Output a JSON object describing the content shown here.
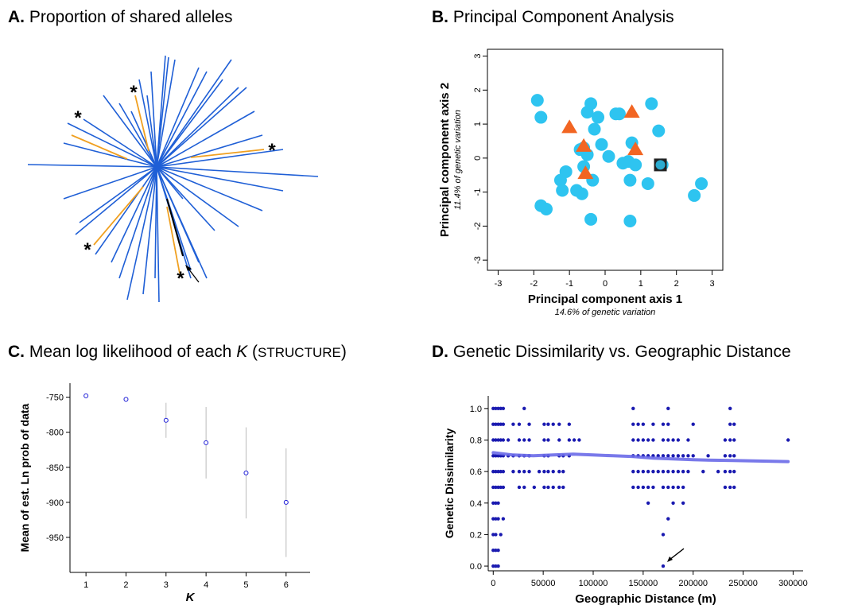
{
  "panels": {
    "a": {
      "letter": "A.",
      "title": "Proportion of shared alleles"
    },
    "b": {
      "letter": "B.",
      "title": "Principal Component Analysis"
    },
    "c": {
      "letter": "C.",
      "title_pre": "Mean log likelihood of each ",
      "title_k": "K",
      "title_paren_open": " (",
      "title_struct": "STRUCTURE",
      "title_paren_close": ")"
    },
    "d": {
      "letter": "D.",
      "title": "Genetic Dissimilarity vs. Geographic Distance"
    }
  },
  "tree": {
    "marker": "*",
    "colors": {
      "branch": "#1f5fd6",
      "highlight": "#f0a020",
      "target": "#000000"
    }
  },
  "chart_data": [
    {
      "id": "pca",
      "type": "scatter",
      "xlabel": "Principal component axis 1",
      "xlabel_sub": "14.6% of genetic variation",
      "ylabel": "Principal component axis 2",
      "ylabel_sub": "11.4% of genetic variation",
      "xlim": [
        -3.3,
        3.3
      ],
      "ylim": [
        -3.3,
        3.2
      ],
      "xticks": [
        -3,
        -2,
        -1,
        0,
        1,
        2,
        3
      ],
      "yticks": [
        -3,
        -2,
        -1,
        0,
        1,
        2,
        3
      ],
      "colors": {
        "circle": "#2ec4f0",
        "triangle": "#f26522",
        "square": "#222222"
      },
      "series": [
        {
          "marker": "circle",
          "points": [
            [
              -1.9,
              1.7
            ],
            [
              -1.8,
              1.2
            ],
            [
              -0.4,
              1.6
            ],
            [
              -0.5,
              1.35
            ],
            [
              -0.2,
              1.2
            ],
            [
              0.3,
              1.3
            ],
            [
              0.4,
              1.3
            ],
            [
              1.3,
              1.6
            ],
            [
              -0.3,
              0.85
            ],
            [
              -0.6,
              0.3
            ],
            [
              -0.7,
              0.25
            ],
            [
              -0.1,
              0.4
            ],
            [
              0.75,
              0.45
            ],
            [
              1.5,
              0.8
            ],
            [
              -0.5,
              0.1
            ],
            [
              0.1,
              0.05
            ],
            [
              0.5,
              -0.15
            ],
            [
              0.65,
              -0.1
            ],
            [
              0.85,
              -0.2
            ],
            [
              -1.1,
              -0.4
            ],
            [
              -0.6,
              -0.25
            ],
            [
              -1.25,
              -0.65
            ],
            [
              -0.35,
              -0.65
            ],
            [
              0.7,
              -0.65
            ],
            [
              1.2,
              -0.75
            ],
            [
              2.7,
              -0.75
            ],
            [
              -1.2,
              -0.95
            ],
            [
              -0.8,
              -0.95
            ],
            [
              -0.65,
              -1.05
            ],
            [
              2.5,
              -1.1
            ],
            [
              -1.8,
              -1.4
            ],
            [
              -1.65,
              -1.5
            ],
            [
              -0.4,
              -1.8
            ],
            [
              0.7,
              -1.85
            ],
            [
              1.6,
              -0.2
            ]
          ]
        },
        {
          "marker": "triangle",
          "points": [
            [
              -1.0,
              0.9
            ],
            [
              0.75,
              1.35
            ],
            [
              -0.6,
              0.35
            ],
            [
              0.85,
              0.25
            ],
            [
              -0.55,
              -0.45
            ]
          ]
        },
        {
          "marker": "square",
          "points": [
            [
              1.55,
              -0.2
            ]
          ]
        }
      ]
    },
    {
      "id": "structure",
      "type": "scatter",
      "xlabel": "K",
      "ylabel": "Mean of est. Ln prob of data",
      "x": [
        1,
        2,
        3,
        4,
        5,
        6
      ],
      "y": [
        -748,
        -753,
        -783,
        -815,
        -858,
        -900
      ],
      "err_low": [
        -748,
        -753,
        -808,
        -866,
        -923,
        -978
      ],
      "err_high": [
        -748,
        -753,
        -758,
        -764,
        -793,
        -823
      ],
      "xlim": [
        0.6,
        6.6
      ],
      "ylim": [
        -1000,
        -730
      ],
      "xticks": [
        1,
        2,
        3,
        4,
        5,
        6
      ],
      "yticks": [
        -750,
        -800,
        -850,
        -900,
        -950
      ],
      "colors": {
        "point": "#1a1ad6",
        "err": "#bbbbbb"
      }
    },
    {
      "id": "ibd",
      "type": "scatter",
      "xlabel": "Geographic Distance (m)",
      "ylabel": "Genetic Dissimilarity",
      "xlim": [
        -5000,
        310000
      ],
      "ylim": [
        -0.03,
        1.08
      ],
      "xticks": [
        0,
        50000,
        100000,
        150000,
        200000,
        250000,
        300000
      ],
      "ytick_labels": [
        "0.0",
        "0.2",
        "0.4",
        "0.6",
        "0.8",
        "1.0"
      ],
      "colors": {
        "point": "#1a1ab0",
        "smooth": "#6a6ae8"
      },
      "columns": [
        {
          "x": 0,
          "y": [
            0.0,
            0.1,
            0.2,
            0.3,
            0.4,
            0.5,
            0.6,
            0.7,
            0.8,
            0.9,
            1.0
          ]
        },
        {
          "x": 2500,
          "y": [
            0.0,
            0.1,
            0.2,
            0.3,
            0.4,
            0.5,
            0.6,
            0.7,
            0.8,
            0.9,
            1.0
          ]
        },
        {
          "x": 5000,
          "y": [
            0.0,
            0.1,
            0.3,
            0.4,
            0.5,
            0.6,
            0.7,
            0.8,
            0.9,
            1.0
          ]
        },
        {
          "x": 7500,
          "y": [
            0.2,
            0.5,
            0.6,
            0.7,
            0.8,
            0.9,
            1.0
          ]
        },
        {
          "x": 10000,
          "y": [
            0.3,
            0.5,
            0.6,
            0.7,
            0.8,
            0.9,
            1.0
          ]
        },
        {
          "x": 15000,
          "y": [
            0.7,
            0.8
          ]
        },
        {
          "x": 20000,
          "y": [
            0.6,
            0.7,
            0.9
          ]
        },
        {
          "x": 26000,
          "y": [
            0.5,
            0.6,
            0.7,
            0.8,
            0.9
          ]
        },
        {
          "x": 31000,
          "y": [
            0.5,
            0.6,
            0.7,
            0.8,
            1.0
          ]
        },
        {
          "x": 36000,
          "y": [
            0.6,
            0.7,
            0.8,
            0.9
          ]
        },
        {
          "x": 41000,
          "y": [
            0.5
          ]
        },
        {
          "x": 46000,
          "y": [
            0.6
          ]
        },
        {
          "x": 51000,
          "y": [
            0.5,
            0.6,
            0.7,
            0.8,
            0.9
          ]
        },
        {
          "x": 55000,
          "y": [
            0.5,
            0.6,
            0.7,
            0.8,
            0.9
          ]
        },
        {
          "x": 60000,
          "y": [
            0.5,
            0.6,
            0.9
          ]
        },
        {
          "x": 66000,
          "y": [
            0.5,
            0.6,
            0.7,
            0.8,
            0.9
          ]
        },
        {
          "x": 70000,
          "y": [
            0.5,
            0.6,
            0.7
          ]
        },
        {
          "x": 76000,
          "y": [
            0.7,
            0.8,
            0.9
          ]
        },
        {
          "x": 81000,
          "y": [
            0.8
          ]
        },
        {
          "x": 86000,
          "y": [
            0.8
          ]
        },
        {
          "x": 140000,
          "y": [
            0.5,
            0.6,
            0.7,
            0.8,
            0.9,
            1.0
          ]
        },
        {
          "x": 145000,
          "y": [
            0.5,
            0.6,
            0.7,
            0.8,
            0.9
          ]
        },
        {
          "x": 150000,
          "y": [
            0.5,
            0.6,
            0.7,
            0.8,
            0.9
          ]
        },
        {
          "x": 155000,
          "y": [
            0.4,
            0.5,
            0.6,
            0.7,
            0.8
          ]
        },
        {
          "x": 160000,
          "y": [
            0.5,
            0.6,
            0.7,
            0.8,
            0.9
          ]
        },
        {
          "x": 165000,
          "y": [
            0.6,
            0.7
          ]
        },
        {
          "x": 170000,
          "y": [
            0.0,
            0.2,
            0.5,
            0.6,
            0.7,
            0.8,
            0.9
          ]
        },
        {
          "x": 175000,
          "y": [
            0.3,
            0.5,
            0.6,
            0.7,
            0.8,
            0.9,
            1.0
          ]
        },
        {
          "x": 180000,
          "y": [
            0.4,
            0.5,
            0.6,
            0.7,
            0.8
          ]
        },
        {
          "x": 185000,
          "y": [
            0.5,
            0.6,
            0.7,
            0.8
          ]
        },
        {
          "x": 190000,
          "y": [
            0.4,
            0.5,
            0.6,
            0.7
          ]
        },
        {
          "x": 195000,
          "y": [
            0.6,
            0.7,
            0.8
          ]
        },
        {
          "x": 200000,
          "y": [
            0.7,
            0.9
          ]
        },
        {
          "x": 210000,
          "y": [
            0.6
          ]
        },
        {
          "x": 215000,
          "y": [
            0.7
          ]
        },
        {
          "x": 225000,
          "y": [
            0.6
          ]
        },
        {
          "x": 232000,
          "y": [
            0.5,
            0.6,
            0.7,
            0.8
          ]
        },
        {
          "x": 237000,
          "y": [
            0.5,
            0.6,
            0.7,
            0.8,
            0.9,
            1.0
          ]
        },
        {
          "x": 241000,
          "y": [
            0.5,
            0.6,
            0.7,
            0.8,
            0.9
          ]
        },
        {
          "x": 295000,
          "y": [
            0.8
          ]
        }
      ],
      "smooth": {
        "x": [
          0,
          20000,
          40000,
          60000,
          80000,
          100000,
          120000,
          140000,
          160000,
          180000,
          200000,
          220000,
          240000,
          260000,
          280000,
          295000
        ],
        "y": [
          0.72,
          0.705,
          0.7,
          0.705,
          0.71,
          0.705,
          0.7,
          0.695,
          0.685,
          0.68,
          0.675,
          0.672,
          0.67,
          0.668,
          0.665,
          0.663
        ]
      }
    }
  ]
}
